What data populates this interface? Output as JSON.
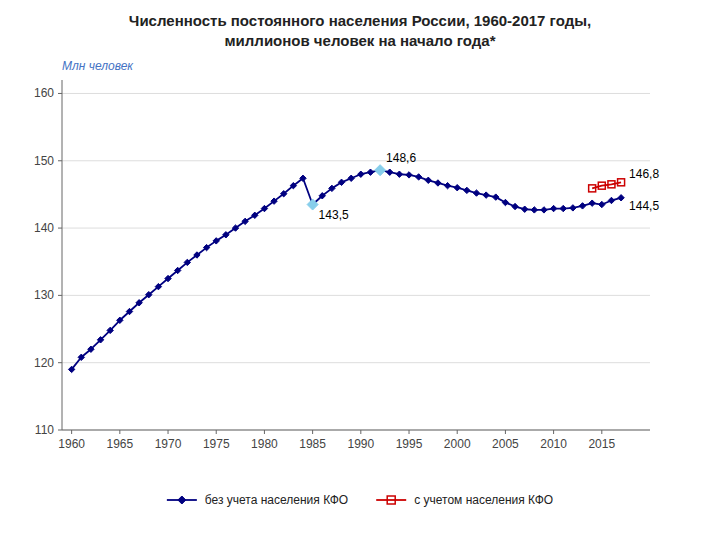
{
  "chart_data": {
    "type": "line",
    "title": "Численность постоянного населения России, 1960-2017 годы,",
    "subtitle": "миллионов человек на начало года*",
    "y_label": "Млн человек",
    "xlim": [
      1959,
      2020
    ],
    "xticks": [
      1960,
      1965,
      1970,
      1975,
      1980,
      1985,
      1990,
      1995,
      2000,
      2005,
      2010,
      2015
    ],
    "ylim": [
      110,
      162
    ],
    "yticks": [
      110,
      120,
      130,
      140,
      150,
      160
    ],
    "grid": "y",
    "legend": "bottom",
    "series": [
      {
        "name": "без учета населения КФО",
        "color": "#000080",
        "marker": "diamond",
        "x": [
          1960,
          1961,
          1962,
          1963,
          1964,
          1965,
          1966,
          1967,
          1968,
          1969,
          1970,
          1971,
          1972,
          1973,
          1974,
          1975,
          1976,
          1977,
          1978,
          1979,
          1980,
          1981,
          1982,
          1983,
          1984,
          1985,
          1986,
          1987,
          1988,
          1989,
          1990,
          1991,
          1992,
          1993,
          1994,
          1995,
          1996,
          1997,
          1998,
          1999,
          2000,
          2001,
          2002,
          2003,
          2004,
          2005,
          2006,
          2007,
          2008,
          2009,
          2010,
          2011,
          2012,
          2013,
          2014,
          2015,
          2016,
          2017
        ],
        "values": [
          119.0,
          120.8,
          122.0,
          123.4,
          124.8,
          126.3,
          127.6,
          128.9,
          130.1,
          131.3,
          132.5,
          133.7,
          134.9,
          136.0,
          137.1,
          138.1,
          139.0,
          140.0,
          141.0,
          141.9,
          142.9,
          144.0,
          145.1,
          146.3,
          147.4,
          143.5,
          144.8,
          145.9,
          146.8,
          147.4,
          148.0,
          148.3,
          148.6,
          148.3,
          148.0,
          147.9,
          147.6,
          147.1,
          146.7,
          146.3,
          146.0,
          145.6,
          145.2,
          144.9,
          144.6,
          143.8,
          143.2,
          142.8,
          142.7,
          142.7,
          142.9,
          142.9,
          143.0,
          143.3,
          143.7,
          143.5,
          144.1,
          144.5
        ]
      },
      {
        "name": "с учетом населения КФО",
        "color": "#cc0000",
        "marker": "open-square",
        "x": [
          2014,
          2015,
          2016,
          2017
        ],
        "values": [
          145.9,
          146.3,
          146.5,
          146.8
        ]
      }
    ],
    "annotations": [
      {
        "text": "143,5",
        "x": 1985,
        "y": 143.5,
        "color": "#87ceeb"
      },
      {
        "text": "148,6",
        "x": 1992,
        "y": 148.6,
        "color": "#87ceeb"
      },
      {
        "text": "146,8",
        "x": 2017,
        "y": 146.8
      },
      {
        "text": "144,5",
        "x": 2017,
        "y": 144.5
      }
    ]
  }
}
